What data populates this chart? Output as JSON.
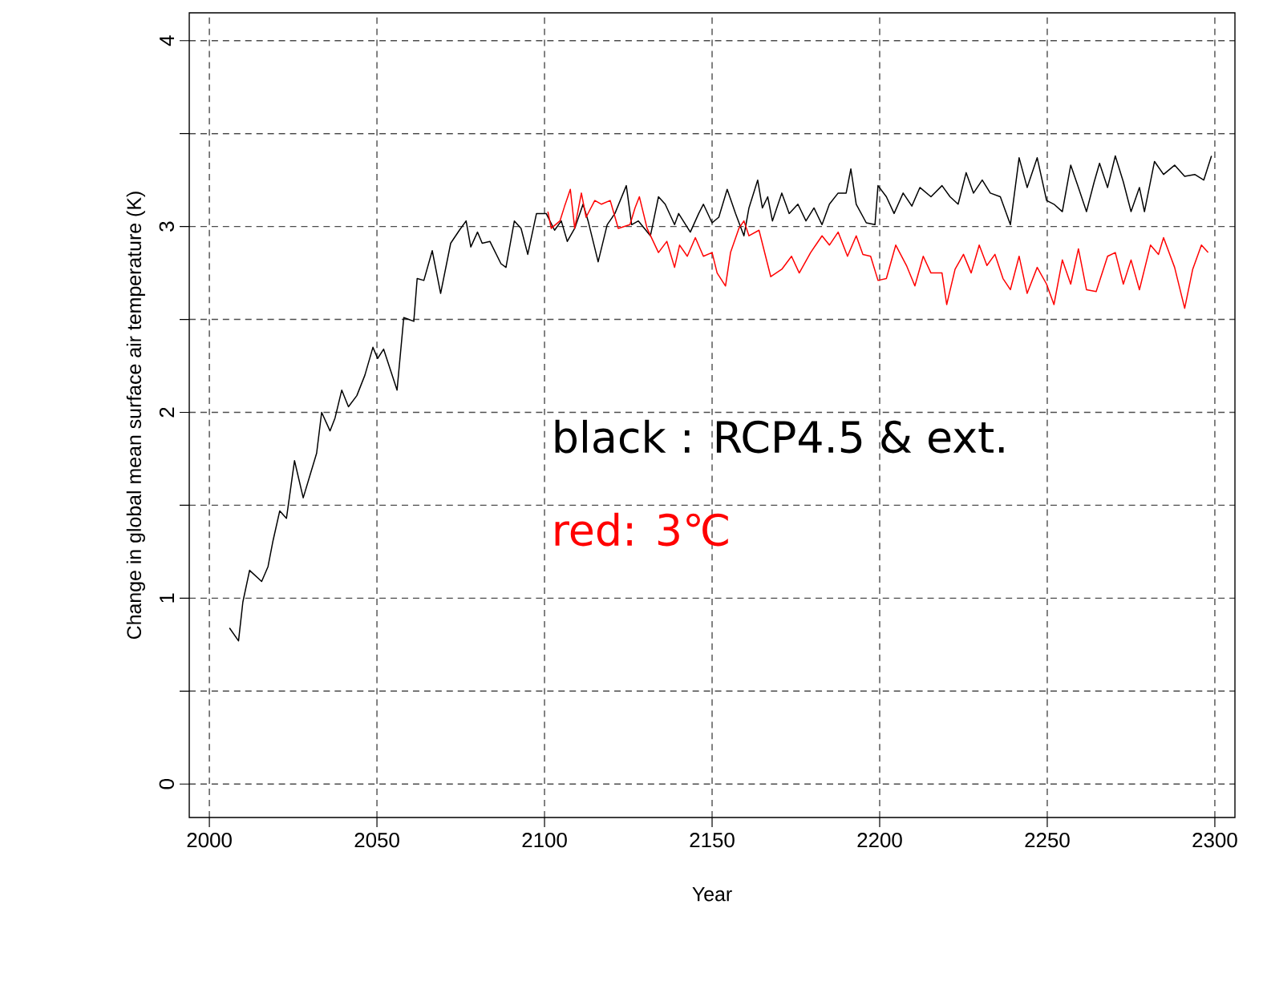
{
  "chart_data": {
    "type": "line",
    "xlabel": "Year",
    "ylabel": "Change in global mean surface air temperature (K)",
    "xlim": [
      1994,
      2306
    ],
    "ylim": [
      -0.18,
      4.15
    ],
    "xticks": [
      2000,
      2050,
      2100,
      2150,
      2200,
      2250,
      2300
    ],
    "yticks": [
      0,
      {
        "value": 0.5,
        "label": null
      },
      1,
      {
        "value": 1.5,
        "label": null
      },
      2,
      {
        "value": 2.5,
        "label": null
      },
      3,
      {
        "value": 3.5,
        "label": null
      },
      4
    ],
    "grid": true,
    "legend": "right",
    "line_style": "solid",
    "marker": "none",
    "series": [
      {
        "name": "black : RCP4.5 & ext.",
        "color": "#000000",
        "x": [
          2006,
          2008.7,
          2010,
          2012,
          2015.6,
          2017.5,
          2019,
          2021,
          2023,
          2025.4,
          2028,
          2030,
          2032,
          2033.5,
          2036,
          2037.5,
          2039.5,
          2041.5,
          2044,
          2046.4,
          2048.8,
          2050.2,
          2052,
          2056,
          2058,
          2061,
          2062,
          2064,
          2066.5,
          2069,
          2072,
          2074.6,
          2076.6,
          2078,
          2080,
          2081.4,
          2083.7,
          2087,
          2088.5,
          2091,
          2093,
          2095,
          2097.6,
          2100.5,
          2103,
          2105,
          2106.8,
          2109,
          2111.5,
          2113,
          2116,
          2118.7,
          2121,
          2124.4,
          2126,
          2128,
          2131.6,
          2134,
          2136,
          2138.8,
          2140,
          2143.5,
          2146,
          2147.4,
          2150,
          2152,
          2154.5,
          2157,
          2159.5,
          2161,
          2163.6,
          2165,
          2166.6,
          2168,
          2170.8,
          2173,
          2175.6,
          2178,
          2180.4,
          2182.8,
          2185,
          2187.6,
          2190,
          2191.4,
          2193,
          2196,
          2198.6,
          2199.5,
          2202,
          2204.3,
          2207,
          2209.6,
          2212,
          2215.3,
          2218.6,
          2221,
          2223.4,
          2225.8,
          2228,
          2230.6,
          2233,
          2236,
          2239,
          2241.6,
          2244,
          2247,
          2249.8,
          2252,
          2254.5,
          2257,
          2259.3,
          2261.7,
          2264,
          2265.6,
          2268,
          2270.3,
          2272.7,
          2275,
          2277.5,
          2279,
          2282,
          2284.7,
          2288,
          2291,
          2294,
          2296.7,
          2299
        ],
        "values": [
          0.84,
          0.77,
          0.98,
          1.15,
          1.09,
          1.17,
          1.31,
          1.47,
          1.43,
          1.74,
          1.54,
          1.66,
          1.78,
          2.0,
          1.9,
          1.97,
          2.12,
          2.03,
          2.09,
          2.2,
          2.35,
          2.29,
          2.34,
          2.12,
          2.51,
          2.49,
          2.72,
          2.71,
          2.87,
          2.64,
          2.91,
          2.98,
          3.03,
          2.89,
          2.97,
          2.91,
          2.92,
          2.8,
          2.78,
          3.03,
          2.99,
          2.85,
          3.07,
          3.07,
          2.98,
          3.03,
          2.92,
          2.99,
          3.12,
          3.03,
          2.81,
          3.01,
          3.07,
          3.22,
          3.01,
          3.03,
          2.95,
          3.16,
          3.12,
          3.01,
          3.07,
          2.97,
          3.07,
          3.12,
          3.02,
          3.05,
          3.2,
          3.07,
          2.95,
          3.1,
          3.25,
          3.1,
          3.16,
          3.03,
          3.18,
          3.07,
          3.12,
          3.03,
          3.1,
          3.01,
          3.12,
          3.18,
          3.18,
          3.31,
          3.12,
          3.02,
          3.01,
          3.22,
          3.16,
          3.07,
          3.18,
          3.11,
          3.21,
          3.16,
          3.22,
          3.16,
          3.12,
          3.29,
          3.18,
          3.25,
          3.18,
          3.16,
          3.01,
          3.37,
          3.21,
          3.37,
          3.14,
          3.12,
          3.08,
          3.33,
          3.21,
          3.08,
          3.24,
          3.34,
          3.21,
          3.38,
          3.24,
          3.08,
          3.21,
          3.08,
          3.35,
          3.28,
          3.33,
          3.27,
          3.28,
          3.25,
          3.38
        ]
      },
      {
        "name": "red: 3℃",
        "color": "#ff0000",
        "x": [
          2101,
          2102,
          2104.6,
          2106,
          2107.7,
          2109,
          2111,
          2112.4,
          2115,
          2117,
          2119.6,
          2122,
          2125.5,
          2127,
          2128.3,
          2130.6,
          2134,
          2136.5,
          2138.8,
          2140.3,
          2142.6,
          2145,
          2147.4,
          2150,
          2151.5,
          2154,
          2155.5,
          2158,
          2159.5,
          2161,
          2164,
          2167.5,
          2170.8,
          2173.7,
          2176,
          2179.4,
          2182.8,
          2185,
          2187.6,
          2190.4,
          2193,
          2195,
          2197.3,
          2199.5,
          2202,
          2204.8,
          2208,
          2210.5,
          2213,
          2215.3,
          2218.6,
          2220,
          2222.5,
          2225,
          2227.3,
          2229.7,
          2232,
          2234.4,
          2236.8,
          2239,
          2241.6,
          2244,
          2247,
          2249.8,
          2252,
          2254.5,
          2257,
          2259.3,
          2261.7,
          2264.6,
          2268,
          2270.3,
          2272.7,
          2275,
          2277.5,
          2280.8,
          2283.2,
          2284.7,
          2288,
          2291,
          2293.4,
          2296,
          2298
        ],
        "values": [
          3.08,
          2.99,
          3.03,
          3.11,
          3.2,
          2.99,
          3.18,
          3.05,
          3.14,
          3.12,
          3.14,
          2.99,
          3.01,
          3.1,
          3.16,
          2.99,
          2.86,
          2.92,
          2.78,
          2.9,
          2.84,
          2.94,
          2.84,
          2.86,
          2.75,
          2.68,
          2.86,
          2.99,
          3.03,
          2.95,
          2.98,
          2.73,
          2.77,
          2.84,
          2.75,
          2.86,
          2.95,
          2.9,
          2.97,
          2.84,
          2.95,
          2.85,
          2.84,
          2.71,
          2.72,
          2.9,
          2.79,
          2.68,
          2.84,
          2.75,
          2.75,
          2.58,
          2.77,
          2.85,
          2.75,
          2.9,
          2.79,
          2.85,
          2.72,
          2.66,
          2.84,
          2.64,
          2.78,
          2.69,
          2.58,
          2.82,
          2.69,
          2.88,
          2.66,
          2.65,
          2.84,
          2.86,
          2.69,
          2.82,
          2.66,
          2.9,
          2.85,
          2.94,
          2.78,
          2.56,
          2.77,
          2.9,
          2.86
        ]
      }
    ]
  }
}
